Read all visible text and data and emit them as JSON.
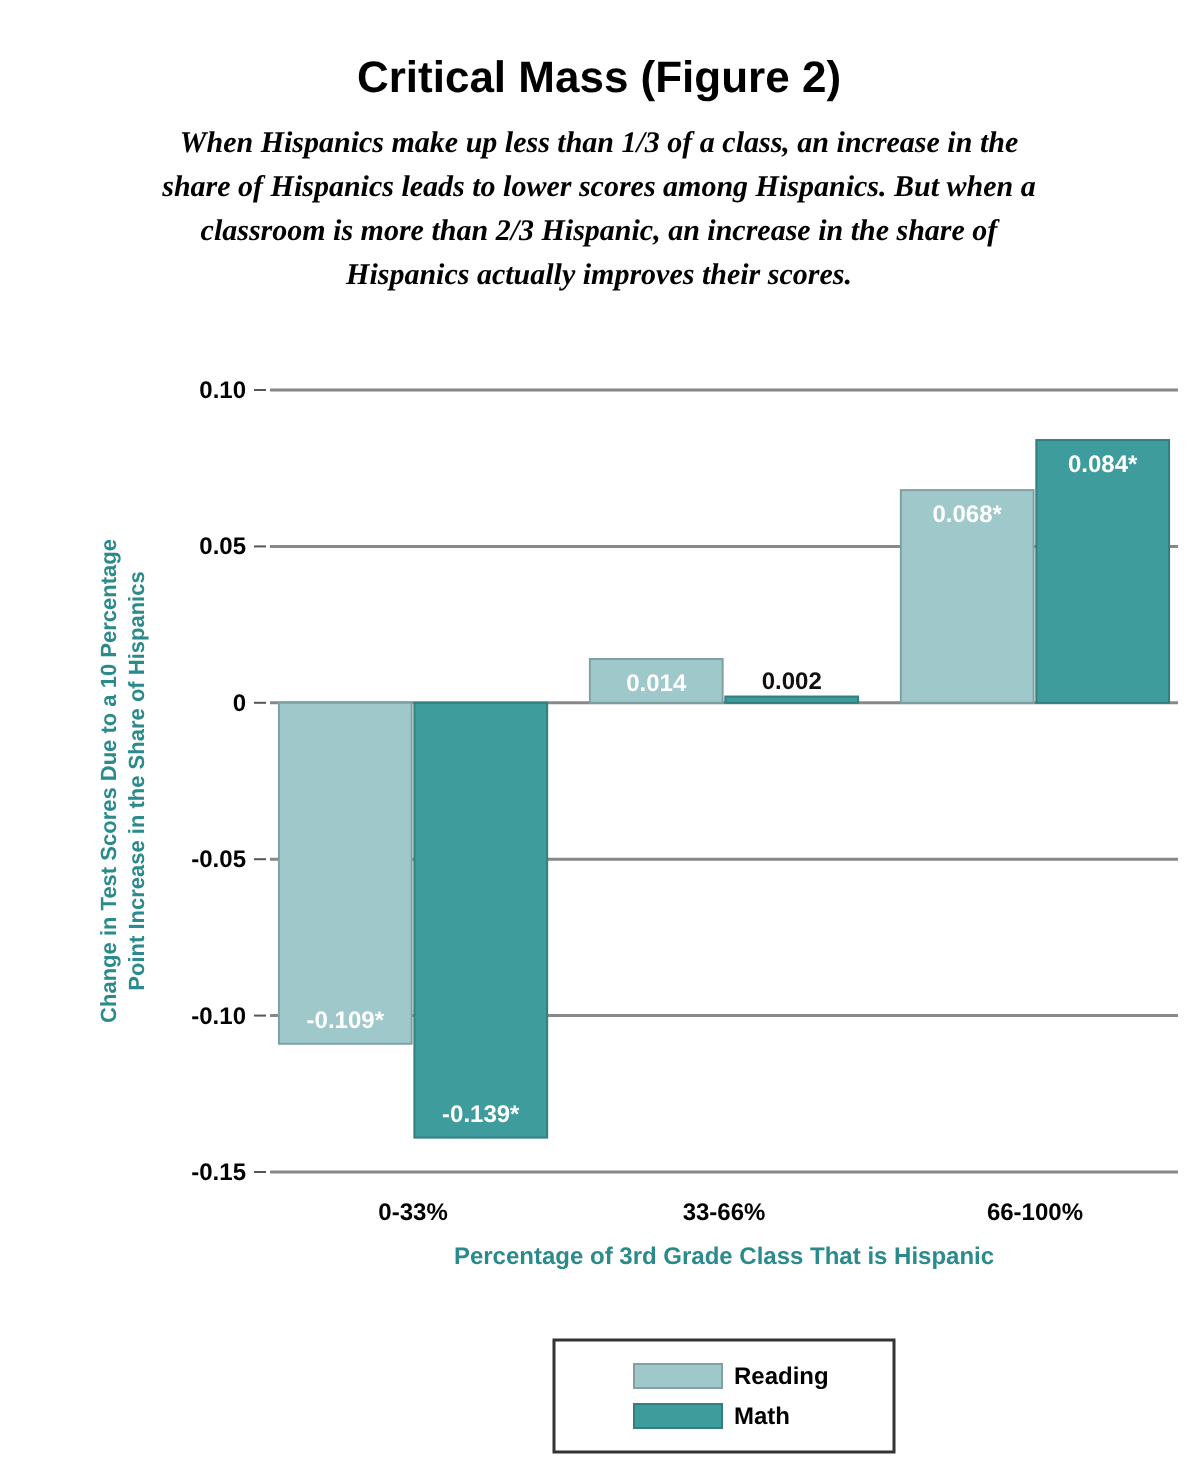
{
  "chart_data": {
    "type": "bar",
    "title": "Critical Mass (Figure 2)",
    "subtitle": "When Hispanics make up less than 1/3 of a class, an increase in the share of Hispanics leads to lower scores among Hispanics. But when a classroom is more than 2/3 Hispanic, an increase in the share of Hispanics actually improves their scores.",
    "xlabel": "Percentage of 3rd Grade Class That is Hispanic",
    "ylabel": "Change in Test Scores Due to a 10 Percentage Point Increase in the Share of Hispanics",
    "categories": [
      "0-33%",
      "33-66%",
      "66-100%"
    ],
    "series": [
      {
        "name": "Reading",
        "color": "#9fc8ca",
        "values": [
          -0.109,
          0.014,
          0.068
        ],
        "value_labels": [
          "-0.109*",
          "0.014",
          "0.068*"
        ]
      },
      {
        "name": "Math",
        "color": "#3f9c9d",
        "values": [
          -0.139,
          0.002,
          0.084
        ],
        "value_labels": [
          "-0.139*",
          "0.002",
          "0.084*"
        ]
      }
    ],
    "ylim": [
      -0.15,
      0.1
    ],
    "yticks": [
      {
        "value": 0.1,
        "label": "0.10"
      },
      {
        "value": 0.05,
        "label": "0.05"
      },
      0,
      {
        "value": -0.05,
        "label": "-0.05"
      },
      {
        "value": -0.1,
        "label": "-0.10"
      },
      {
        "value": -0.15,
        "label": "-0.15"
      }
    ],
    "grid": "y",
    "legend": "bottom"
  }
}
